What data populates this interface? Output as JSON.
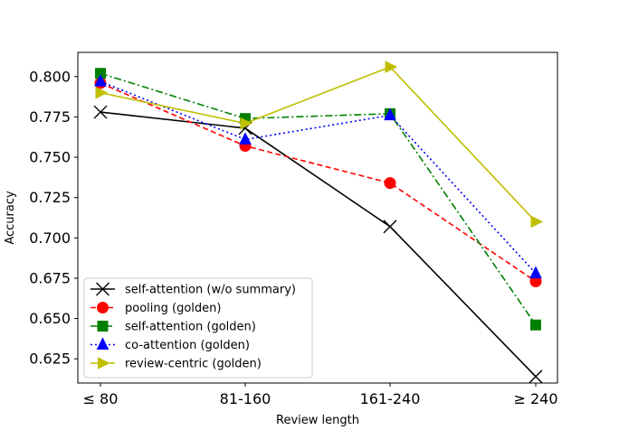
{
  "chart_data": {
    "type": "line",
    "title": "",
    "xlabel": "Review length",
    "ylabel": "Accuracy",
    "categories": [
      "≤ 80",
      "81-160",
      "161-240",
      "≥ 240"
    ],
    "ylim": [
      0.61,
      0.815
    ],
    "yticks": [
      0.625,
      0.65,
      0.675,
      0.7,
      0.725,
      0.75,
      0.775,
      0.8
    ],
    "ytick_labels": [
      "0.625",
      "0.650",
      "0.675",
      "0.700",
      "0.725",
      "0.750",
      "0.775",
      "0.800"
    ],
    "legend_position": "lower-left",
    "grid": false,
    "series": [
      {
        "name": "self-attention (w/o summary)",
        "values": [
          0.778,
          0.768,
          0.707,
          0.614
        ],
        "color": "#000000",
        "marker": "x",
        "dash": "solid"
      },
      {
        "name": "pooling (golden)",
        "values": [
          0.796,
          0.757,
          0.734,
          0.673
        ],
        "color": "#ff0000",
        "marker": "circle",
        "dash": "dashed"
      },
      {
        "name": "self-attention (golden)",
        "values": [
          0.802,
          0.774,
          0.777,
          0.646
        ],
        "color": "#008000",
        "marker": "square",
        "dash": "dashdot"
      },
      {
        "name": "co-attention (golden)",
        "values": [
          0.797,
          0.761,
          0.776,
          0.678
        ],
        "color": "#0000ff",
        "marker": "triangle-up",
        "dash": "dotted"
      },
      {
        "name": "review-centric (golden)",
        "values": [
          0.79,
          0.771,
          0.806,
          0.71
        ],
        "color": "#bfbf00",
        "marker": "triangle-right",
        "dash": "solid"
      }
    ]
  }
}
